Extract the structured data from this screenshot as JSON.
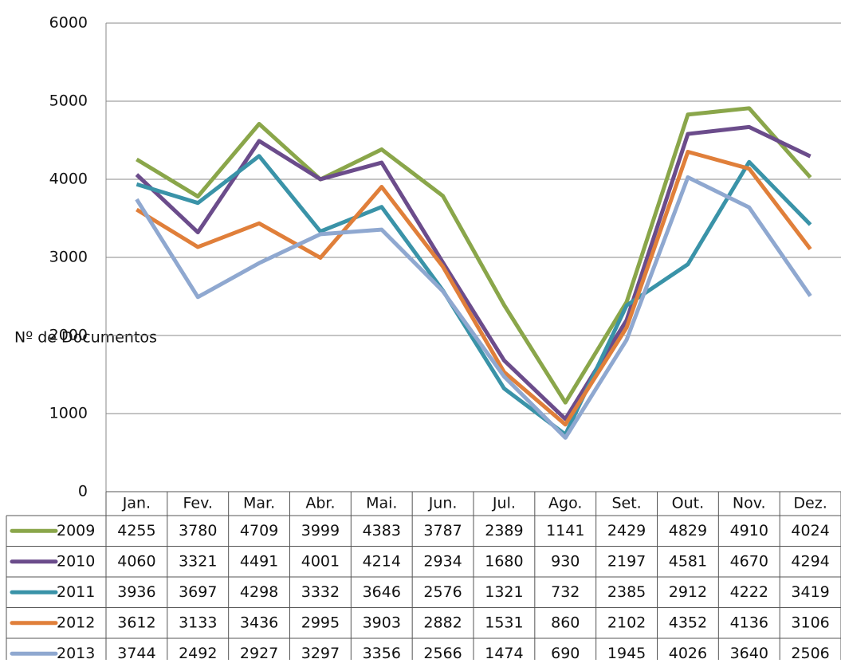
{
  "chart_data": {
    "type": "line",
    "y_label": "Nº de Documentos",
    "categories": [
      "Jan.",
      "Fev.",
      "Mar.",
      "Abr.",
      "Mai.",
      "Jun.",
      "Jul.",
      "Ago.",
      "Set.",
      "Out.",
      "Nov.",
      "Dez."
    ],
    "series": [
      {
        "name": "2009",
        "color": "#8aa64a",
        "values": [
          4255,
          3780,
          4709,
          3999,
          4383,
          3787,
          2389,
          1141,
          2429,
          4829,
          4910,
          4024
        ]
      },
      {
        "name": "2010",
        "color": "#6b4c8b",
        "values": [
          4060,
          3321,
          4491,
          4001,
          4214,
          2934,
          1680,
          930,
          2197,
          4581,
          4670,
          4294
        ]
      },
      {
        "name": "2011",
        "color": "#3a93a8",
        "values": [
          3936,
          3697,
          4298,
          3332,
          3646,
          2576,
          1321,
          732,
          2385,
          2912,
          4222,
          3419
        ]
      },
      {
        "name": "2012",
        "color": "#e07f3a",
        "values": [
          3612,
          3133,
          3436,
          2995,
          3903,
          2882,
          1531,
          860,
          2102,
          4352,
          4136,
          3106
        ]
      },
      {
        "name": "2013",
        "color": "#8fa8d0",
        "values": [
          3744,
          2492,
          2927,
          3297,
          3356,
          2566,
          1474,
          690,
          1945,
          4026,
          3640,
          2506
        ]
      }
    ],
    "ylim": [
      0,
      6000
    ],
    "yticks": [
      0,
      1000,
      2000,
      3000,
      4000,
      5000,
      6000
    ],
    "grid": true
  }
}
